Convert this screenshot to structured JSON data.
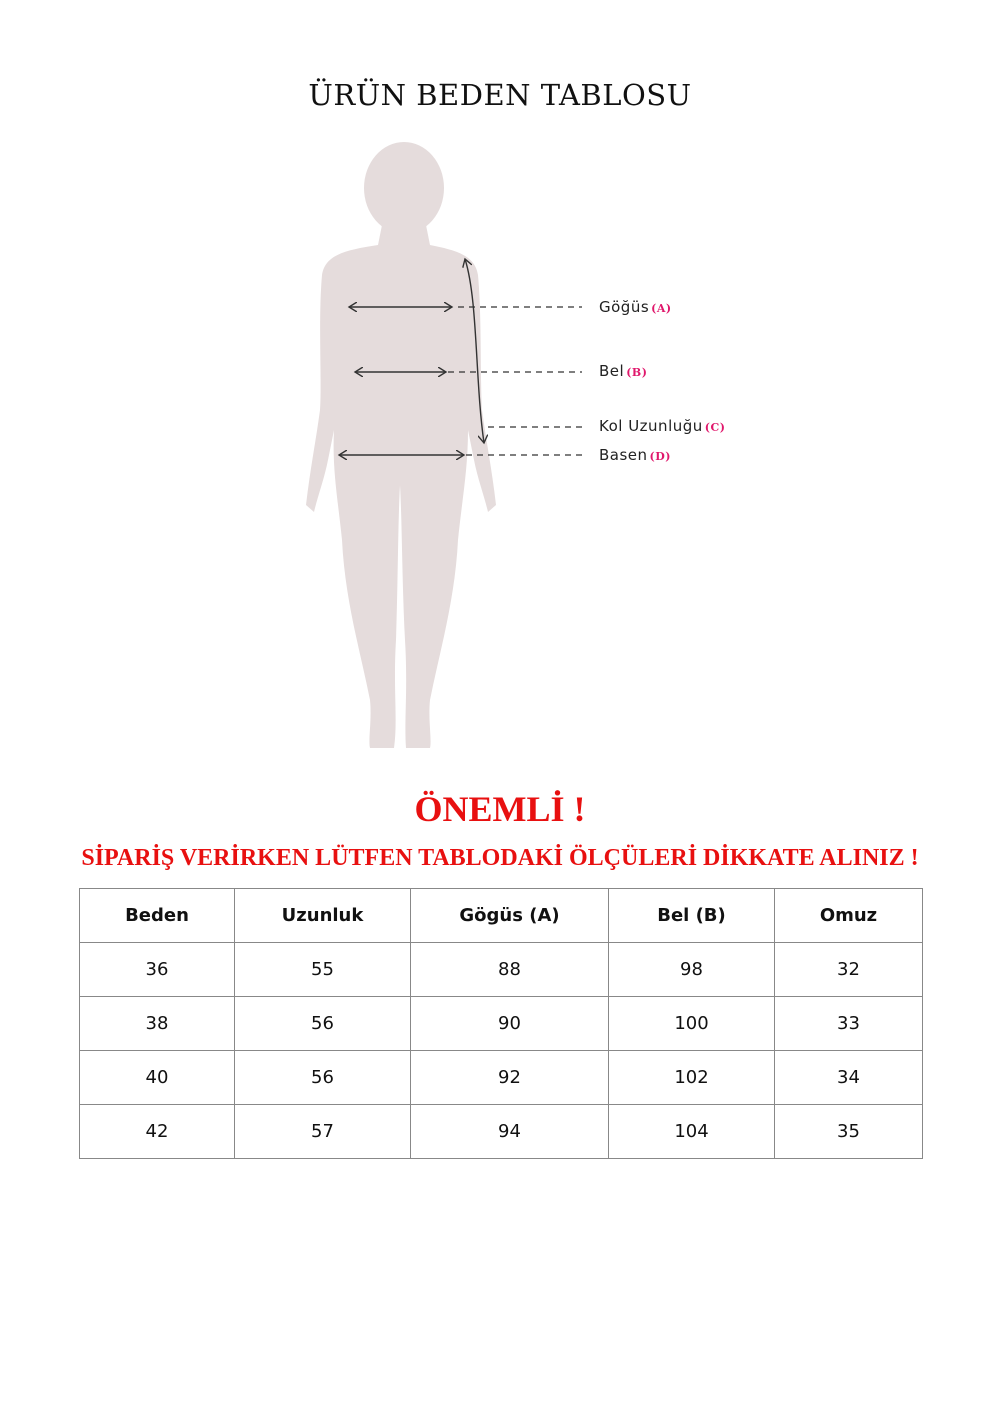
{
  "title": "ÜRÜN BEDEN TABLOSU",
  "diagram": {
    "labels": [
      {
        "text": "Göğüs",
        "tag": "(A)"
      },
      {
        "text": "Bel",
        "tag": "(B)"
      },
      {
        "text": "Kol Uzunluğu",
        "tag": "(C)"
      },
      {
        "text": "Basen",
        "tag": "(D)"
      }
    ],
    "colors": {
      "silhouette": "#e5dcdc",
      "tag": "#e0186c"
    }
  },
  "notice": {
    "heading": "ÖNEMLİ !",
    "message": "SİPARİŞ VERİRKEN LÜTFEN TABLODAKİ ÖLÇÜLERİ DİKKATE ALINIZ !",
    "color": "#e81010"
  },
  "table": {
    "headers": [
      "Beden",
      "Uzunluk",
      "Gögüs (A)",
      "Bel (B)",
      "Omuz"
    ],
    "rows": [
      [
        "36",
        "55",
        "88",
        "98",
        "32"
      ],
      [
        "38",
        "56",
        "90",
        "100",
        "33"
      ],
      [
        "40",
        "56",
        "92",
        "102",
        "34"
      ],
      [
        "42",
        "57",
        "94",
        "104",
        "35"
      ]
    ]
  }
}
